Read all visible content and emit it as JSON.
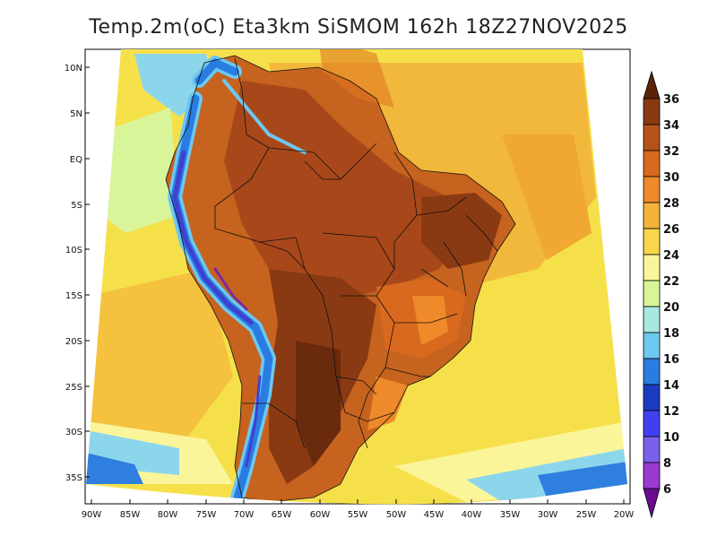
{
  "title": "Temp.2m(oC) Eta3km SiSMOM 162h 18Z27NOV2025",
  "lat_labels": [
    "10N",
    "5N",
    "EQ",
    "5S",
    "10S",
    "15S",
    "20S",
    "25S",
    "30S",
    "35S"
  ],
  "lon_labels": [
    "90W",
    "85W",
    "80W",
    "75W",
    "70W",
    "65W",
    "60W",
    "55W",
    "50W",
    "45W",
    "40W",
    "35W",
    "30W",
    "25W",
    "20W"
  ],
  "colorbar": {
    "labels": [
      "36",
      "34",
      "32",
      "30",
      "28",
      "26",
      "24",
      "22",
      "20",
      "18",
      "16",
      "14",
      "12",
      "10",
      "8",
      "6"
    ],
    "colors_top_to_bottom": [
      "#5a2208",
      "#8a3a10",
      "#b5521a",
      "#d9691e",
      "#ee8a2a",
      "#f5b23a",
      "#f8d84a",
      "#fbf59a",
      "#d8f59a",
      "#a8e8e0",
      "#6ec8f0",
      "#2a7de0",
      "#1c3cc0",
      "#4040f0",
      "#7a60e8",
      "#9a3ad0",
      "#6a0a90"
    ]
  }
}
